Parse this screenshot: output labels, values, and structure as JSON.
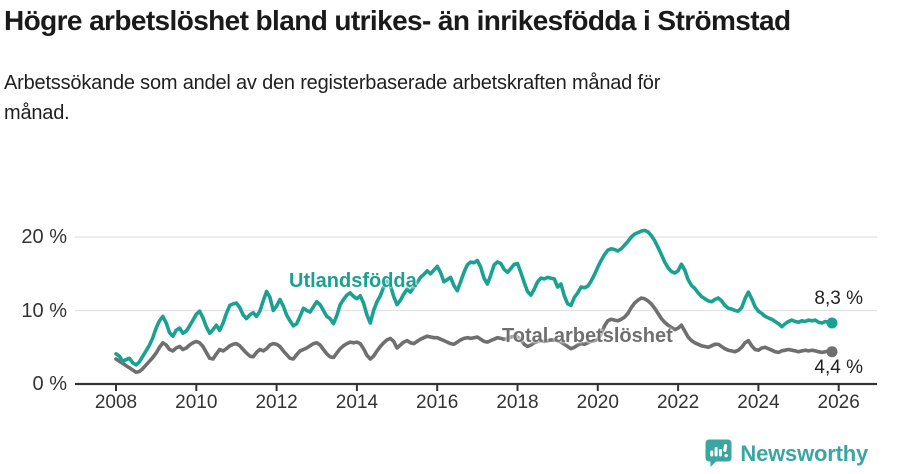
{
  "page": {
    "title": "Högre arbetslöshet bland utrikes- än inrikesfödda i Strömstad",
    "subtitle": "Arbetssökande som andel av den registerbaserade arbetskraften månad för månad."
  },
  "colors": {
    "foreign_born": "#1aa192",
    "total": "#6f6f6f",
    "axis": "#333333",
    "grid": "#e2e2e2",
    "text": "#1a1a1a",
    "brand": "#3aa6a1"
  },
  "footer": {
    "brand": "Newsworthy",
    "logo_icon": "bar-chart-speech-bubble"
  },
  "chart_data": {
    "type": "line",
    "title": "Högre arbetslöshet bland utrikes- än inrikesfödda i Strömstad",
    "subtitle": "Arbetssökande som andel av den registerbaserade arbetskraften månad för månad.",
    "xlabel": "",
    "ylabel": "",
    "x_ticks": [
      2008,
      2010,
      2012,
      2014,
      2016,
      2018,
      2020,
      2022,
      2024,
      2026
    ],
    "y_ticks": [
      {
        "value": 0,
        "label": "0 %"
      },
      {
        "value": 10,
        "label": "10 %"
      },
      {
        "value": 20,
        "label": "20 %"
      }
    ],
    "xlim": [
      2007.0,
      2026.95
    ],
    "ylim": [
      0,
      21.8
    ],
    "grid": "horizontal",
    "legend": "inline-labels",
    "x_start": 2008.0,
    "x_step_years": 0.0833333,
    "series": [
      {
        "name": "Utlandsfödda",
        "color_key": "foreign_born",
        "end_label": "8,3 %",
        "last_value": 8.3,
        "values": [
          4.1,
          3.8,
          3.1,
          3.3,
          3.5,
          2.9,
          2.6,
          3.0,
          3.8,
          4.5,
          5.3,
          6.3,
          7.6,
          8.6,
          9.2,
          8.3,
          7.0,
          6.5,
          7.3,
          7.6,
          6.9,
          7.2,
          7.9,
          8.7,
          9.5,
          9.9,
          9.0,
          7.8,
          6.9,
          7.4,
          8.0,
          7.3,
          8.3,
          9.6,
          10.7,
          10.9,
          11.0,
          10.4,
          9.4,
          8.9,
          9.4,
          9.7,
          9.2,
          9.9,
          11.3,
          12.6,
          11.8,
          10.0,
          10.6,
          11.5,
          10.6,
          9.4,
          8.6,
          7.9,
          8.2,
          9.2,
          10.3,
          10.0,
          9.8,
          10.5,
          11.2,
          10.8,
          10.0,
          9.2,
          8.9,
          8.2,
          9.3,
          10.8,
          11.5,
          12.1,
          12.4,
          11.9,
          11.6,
          12.0,
          11.0,
          9.4,
          8.3,
          10.0,
          11.2,
          12.0,
          13.2,
          14.0,
          13.4,
          11.9,
          10.8,
          11.4,
          12.2,
          12.9,
          12.5,
          13.2,
          13.8,
          14.5,
          14.9,
          15.4,
          15.0,
          15.5,
          16.0,
          15.2,
          13.9,
          14.2,
          14.5,
          13.4,
          12.7,
          13.9,
          15.2,
          16.2,
          16.6,
          16.5,
          16.8,
          15.9,
          14.4,
          13.6,
          14.8,
          16.2,
          16.6,
          16.4,
          15.6,
          15.2,
          15.7,
          16.3,
          16.4,
          15.2,
          13.8,
          12.6,
          12.1,
          12.9,
          13.9,
          14.4,
          14.3,
          14.5,
          14.4,
          14.3,
          13.2,
          13.6,
          12.0,
          10.9,
          10.7,
          11.8,
          12.4,
          13.2,
          13.1,
          13.3,
          14.0,
          14.9,
          15.9,
          16.8,
          17.6,
          18.2,
          18.4,
          18.3,
          18.1,
          18.4,
          18.9,
          19.4,
          20.0,
          20.4,
          20.6,
          20.8,
          20.9,
          20.7,
          20.2,
          19.5,
          18.6,
          17.6,
          16.6,
          15.8,
          15.3,
          15.1,
          15.4,
          16.3,
          15.5,
          14.2,
          13.4,
          13.0,
          12.4,
          11.9,
          11.6,
          11.3,
          11.2,
          11.5,
          11.7,
          11.3,
          10.7,
          10.3,
          10.2,
          10.0,
          9.9,
          10.4,
          11.6,
          12.5,
          11.6,
          10.5,
          9.9,
          9.6,
          9.2,
          9.0,
          8.8,
          8.5,
          8.2,
          7.8,
          8.2,
          8.5,
          8.7,
          8.5,
          8.4,
          8.6,
          8.5,
          8.7,
          8.6,
          8.7,
          8.4,
          8.3,
          8.5,
          8.4,
          8.3
        ]
      },
      {
        "name": "Total arbetslöshet",
        "color_key": "total",
        "end_label": "4,4 %",
        "last_value": 4.4,
        "values": [
          3.4,
          3.1,
          2.8,
          2.5,
          2.2,
          1.9,
          1.6,
          1.7,
          2.1,
          2.6,
          3.1,
          3.6,
          4.2,
          5.0,
          5.6,
          5.3,
          4.7,
          4.5,
          4.9,
          5.1,
          4.7,
          4.9,
          5.3,
          5.6,
          5.8,
          5.6,
          5.1,
          4.3,
          3.5,
          3.4,
          4.1,
          4.7,
          4.5,
          4.8,
          5.2,
          5.4,
          5.5,
          5.2,
          4.7,
          4.2,
          3.8,
          3.7,
          4.3,
          4.7,
          4.5,
          4.8,
          5.3,
          5.5,
          5.4,
          5.1,
          4.5,
          4.0,
          3.5,
          3.4,
          4.0,
          4.5,
          4.7,
          4.9,
          5.2,
          5.5,
          5.6,
          5.3,
          4.7,
          4.1,
          3.7,
          3.6,
          4.2,
          4.8,
          5.2,
          5.5,
          5.7,
          5.6,
          5.7,
          5.5,
          4.8,
          3.9,
          3.4,
          3.8,
          4.5,
          5.1,
          5.6,
          6.0,
          6.2,
          5.8,
          4.9,
          5.3,
          5.7,
          5.9,
          5.6,
          5.5,
          5.8,
          6.1,
          6.3,
          6.5,
          6.4,
          6.3,
          6.3,
          6.1,
          5.9,
          5.7,
          5.5,
          5.4,
          5.7,
          6.0,
          6.2,
          6.3,
          6.2,
          6.3,
          6.4,
          6.1,
          5.8,
          5.7,
          5.9,
          6.1,
          6.3,
          6.2,
          6.1,
          6.2,
          6.4,
          6.5,
          6.4,
          6.0,
          5.4,
          5.1,
          5.3,
          5.6,
          5.8,
          5.9,
          5.8,
          5.9,
          6.0,
          6.0,
          5.9,
          5.7,
          5.4,
          5.1,
          4.8,
          5.0,
          5.3,
          5.5,
          5.4,
          5.6,
          5.8,
          5.9,
          6.1,
          6.8,
          7.9,
          8.6,
          8.8,
          8.7,
          8.6,
          8.8,
          9.1,
          9.6,
          10.4,
          11.0,
          11.4,
          11.7,
          11.6,
          11.3,
          10.9,
          10.3,
          9.6,
          8.9,
          8.4,
          8.0,
          7.7,
          7.4,
          7.6,
          8.0,
          7.2,
          6.4,
          5.9,
          5.6,
          5.4,
          5.2,
          5.1,
          5.0,
          5.2,
          5.4,
          5.4,
          5.1,
          4.8,
          4.6,
          4.5,
          4.4,
          4.6,
          5.0,
          5.6,
          5.9,
          5.2,
          4.7,
          4.6,
          4.9,
          5.0,
          4.8,
          4.6,
          4.4,
          4.3,
          4.5,
          4.6,
          4.7,
          4.6,
          4.5,
          4.4,
          4.5,
          4.6,
          4.5,
          4.6,
          4.5,
          4.4,
          4.3,
          4.4,
          4.5,
          4.4
        ]
      }
    ]
  }
}
